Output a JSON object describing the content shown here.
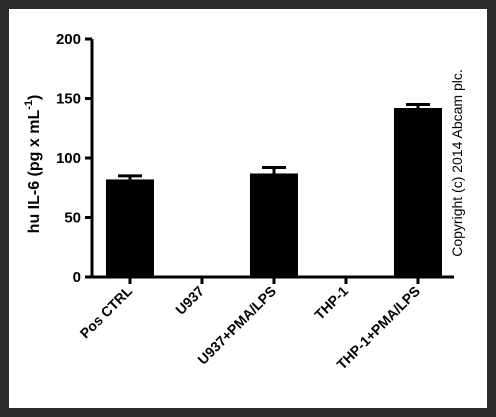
{
  "chart_data": {
    "type": "bar",
    "title": "",
    "xlabel": "",
    "ylabel": "hu IL-6 (pg x mL",
    "ylabel_superscript": "-1",
    "ylabel_suffix": ")",
    "ylim": [
      0,
      200
    ],
    "yticks": [
      0,
      50,
      100,
      150,
      200
    ],
    "categories": [
      "Pos CTRL",
      "U937",
      "U937+PMA/LPS",
      "THP-1",
      "THP-1+PMA/LPS"
    ],
    "values": [
      82,
      1,
      87,
      1,
      142
    ],
    "errors": [
      3,
      0,
      5,
      0,
      3
    ],
    "bar_color": "#000000",
    "grid": false,
    "legend": "none"
  },
  "copyright": "Copyright (c) 2014 Abcam plc."
}
